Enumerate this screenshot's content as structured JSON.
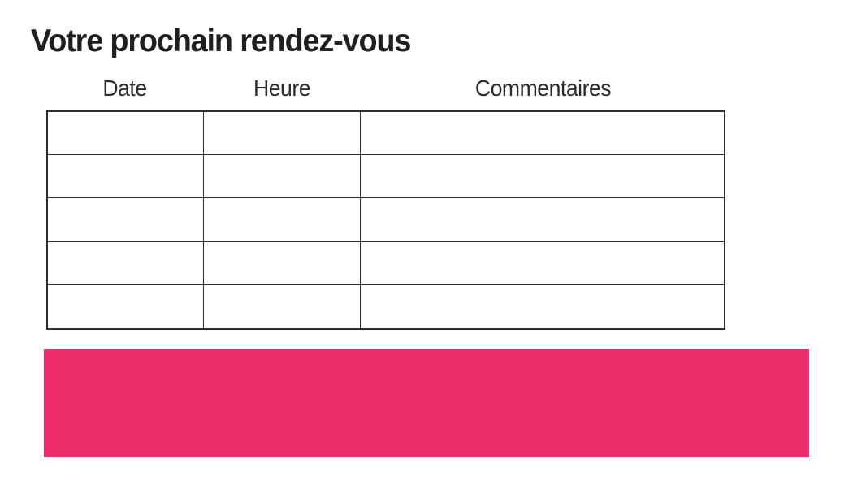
{
  "page": {
    "title": "Votre prochain rendez-vous"
  },
  "table": {
    "columns": [
      {
        "label": "Date"
      },
      {
        "label": "Heure"
      },
      {
        "label": "Commentaires"
      }
    ],
    "rows": [
      [
        "",
        "",
        ""
      ],
      [
        "",
        "",
        ""
      ],
      [
        "",
        "",
        ""
      ],
      [
        "",
        "",
        ""
      ],
      [
        "",
        "",
        ""
      ]
    ]
  },
  "banner": {
    "color": "#ED2E6A"
  },
  "colors": {
    "accent": "#ED2E6A",
    "table_border": "#2e2e2e",
    "title_text": "#1f1f1f",
    "header_text": "#2b2b2b",
    "background": "#ffffff"
  }
}
